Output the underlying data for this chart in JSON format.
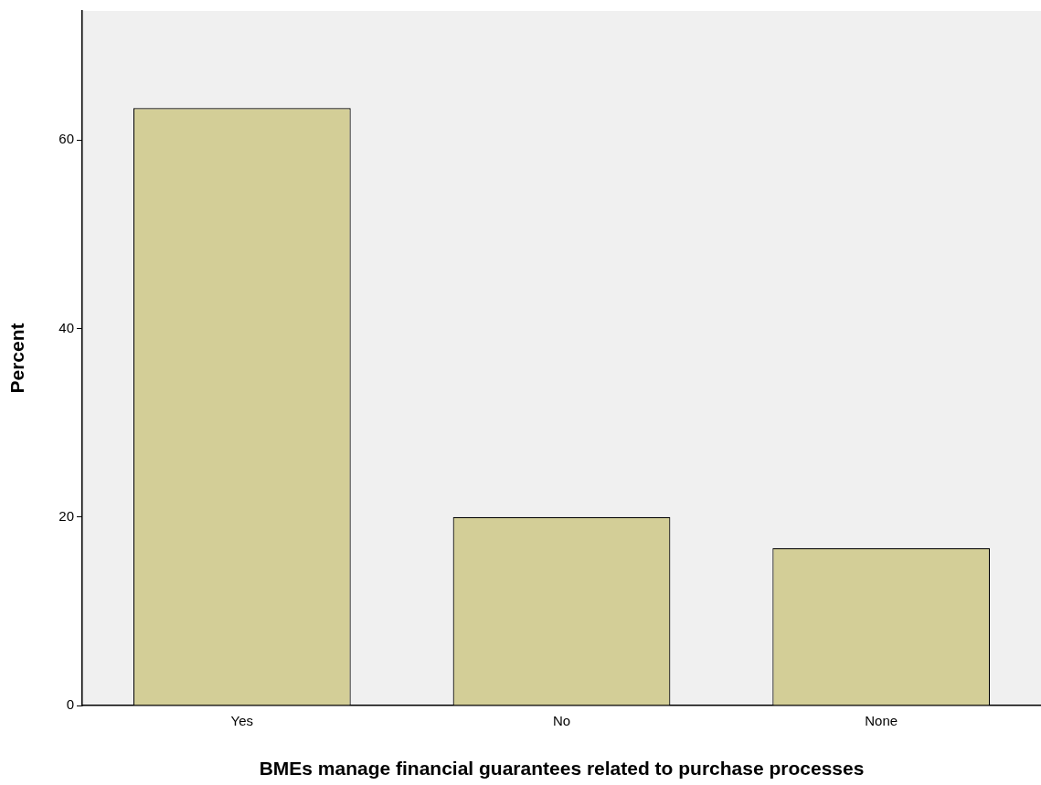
{
  "chart_data": {
    "type": "bar",
    "xlabel": "BMEs manage financial guarantees related to purchase processes",
    "ylabel": "Percent",
    "categories": [
      "Yes",
      "No",
      "None"
    ],
    "values": [
      63.4,
      20.0,
      16.7
    ],
    "color": "#d3ce97",
    "ylim": [
      0,
      73.7
    ],
    "yticks": [
      0,
      20,
      40,
      60
    ],
    "grid": false,
    "legend": false
  }
}
